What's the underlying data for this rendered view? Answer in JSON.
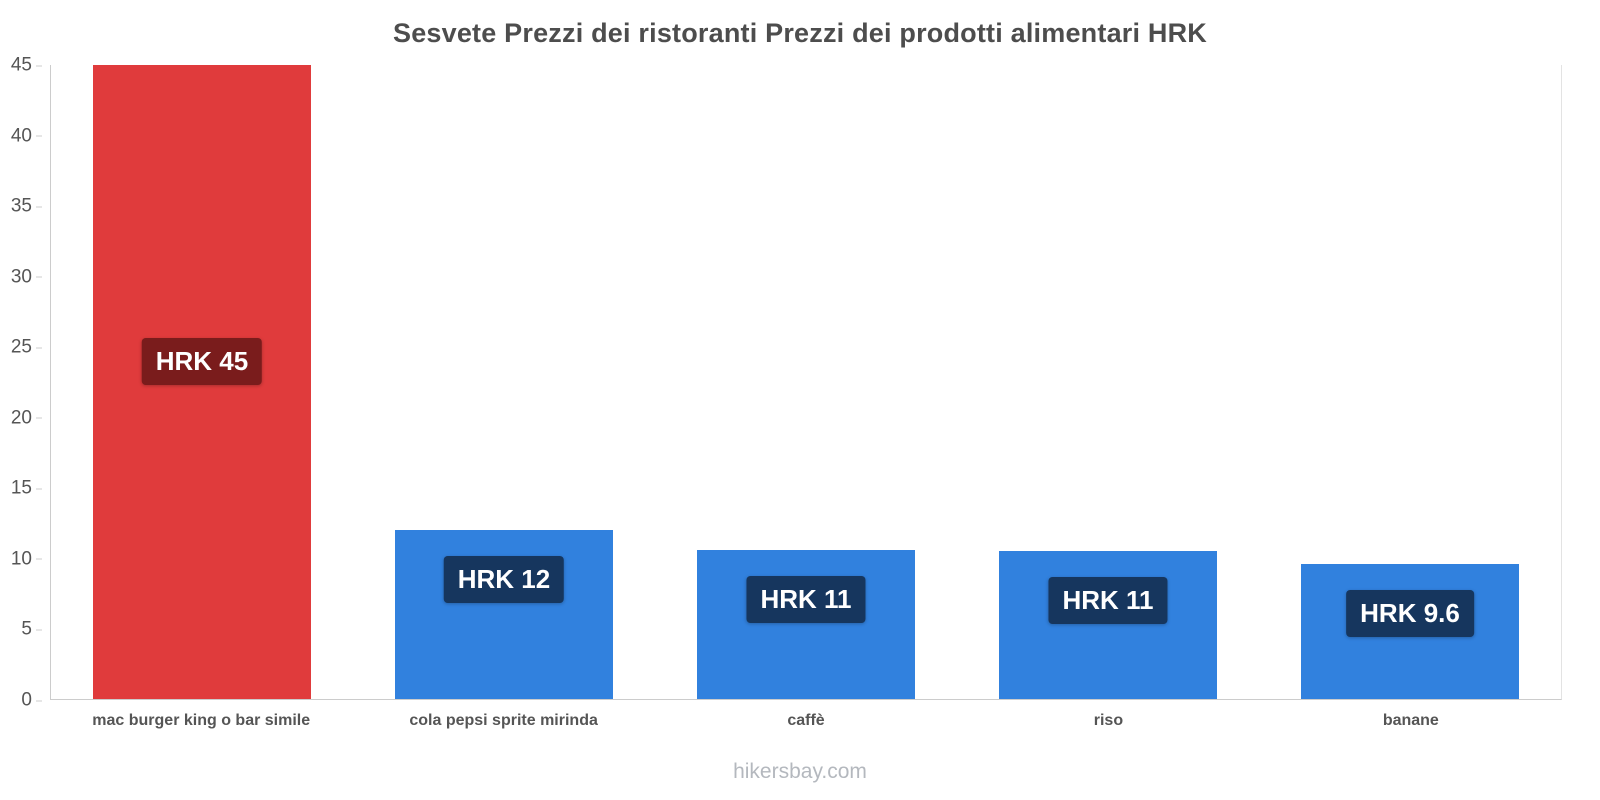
{
  "footer": "hikersbay.com",
  "chart_data": {
    "type": "bar",
    "title": "Sesvete Prezzi dei ristoranti Prezzi dei prodotti alimentari HRK",
    "xlabel": "",
    "ylabel": "",
    "categories": [
      "mac burger king o bar simile",
      "cola pepsi sprite mirinda",
      "caffè",
      "riso",
      "banane"
    ],
    "values": [
      45,
      12,
      10.6,
      10.5,
      9.6
    ],
    "labels": [
      "HRK 45",
      "HRK 12",
      "HRK 11",
      "HRK 11",
      "HRK 9.6"
    ],
    "bar_colors": [
      "#e03b3c",
      "#3181de",
      "#3181de",
      "#3181de",
      "#3181de"
    ],
    "label_bg_colors": [
      "#7a1c1c",
      "#16365e",
      "#16365e",
      "#16365e",
      "#16365e"
    ],
    "ylim": [
      0,
      45
    ],
    "ytick_step": 5,
    "grid": false,
    "legend": false
  }
}
